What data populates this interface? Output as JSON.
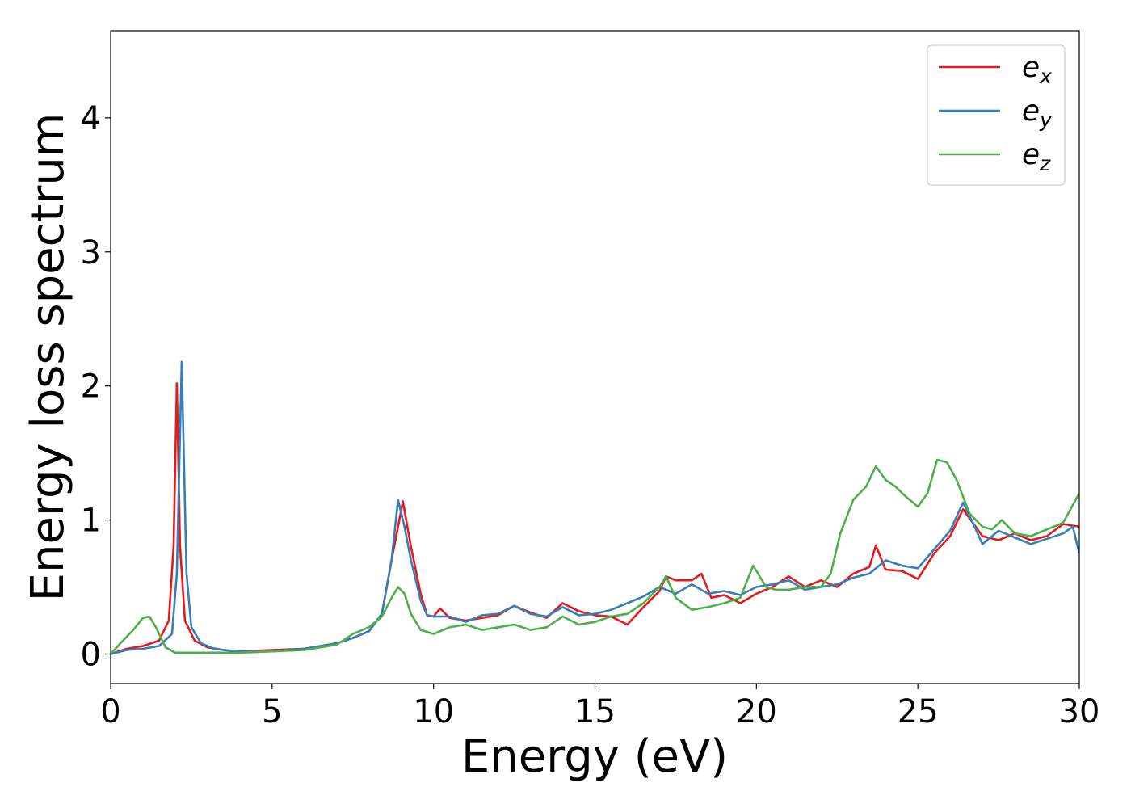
{
  "chart_data": {
    "type": "line",
    "xlabel": "Energy (eV)",
    "ylabel": "Energy loss spectrum",
    "xlim": [
      0,
      30
    ],
    "ylim": [
      -0.22,
      4.65
    ],
    "xticks": [
      "0",
      "5",
      "10",
      "15",
      "20",
      "25",
      "30"
    ],
    "yticks": [
      "0",
      "1",
      "2",
      "3",
      "4"
    ],
    "grid": false,
    "legend_position": "top-right",
    "series": [
      {
        "name": "e",
        "subscript": "x",
        "color": "#e41a1c",
        "x": [
          0,
          0.5,
          1.0,
          1.5,
          1.8,
          1.95,
          2.05,
          2.15,
          2.3,
          2.6,
          3.0,
          3.5,
          4,
          5,
          6,
          7,
          7.5,
          8,
          8.4,
          8.7,
          8.9,
          9.05,
          9.3,
          9.6,
          9.8,
          10,
          10.2,
          10.5,
          11,
          11.5,
          12,
          12.5,
          13,
          13.5,
          14,
          14.5,
          15,
          15.5,
          16,
          16.5,
          17,
          17.2,
          17.5,
          18,
          18.3,
          18.6,
          19,
          19.5,
          20,
          20.5,
          21,
          21.5,
          22,
          22.5,
          23,
          23.5,
          23.7,
          24,
          24.5,
          25,
          25.5,
          26,
          26.4,
          26.7,
          27,
          27.5,
          28,
          28.5,
          29,
          29.5,
          30
        ],
        "values": [
          0,
          0.04,
          0.06,
          0.1,
          0.25,
          0.8,
          2.02,
          0.8,
          0.25,
          0.1,
          0.05,
          0.03,
          0.02,
          0.03,
          0.04,
          0.08,
          0.12,
          0.17,
          0.3,
          0.7,
          0.95,
          1.14,
          0.8,
          0.45,
          0.29,
          0.28,
          0.34,
          0.27,
          0.25,
          0.27,
          0.29,
          0.36,
          0.31,
          0.27,
          0.38,
          0.32,
          0.29,
          0.28,
          0.22,
          0.35,
          0.47,
          0.58,
          0.55,
          0.55,
          0.6,
          0.42,
          0.44,
          0.38,
          0.45,
          0.5,
          0.58,
          0.5,
          0.55,
          0.5,
          0.6,
          0.65,
          0.81,
          0.63,
          0.62,
          0.56,
          0.75,
          0.88,
          1.08,
          0.98,
          0.88,
          0.85,
          0.9,
          0.85,
          0.88,
          0.97,
          0.95
        ]
      },
      {
        "name": "e",
        "subscript": "y",
        "color": "#377eb8",
        "x": [
          0,
          0.5,
          1.0,
          1.5,
          1.9,
          2.05,
          2.2,
          2.35,
          2.5,
          2.8,
          3.2,
          3.5,
          4,
          5,
          6,
          7,
          7.5,
          8,
          8.4,
          8.7,
          8.9,
          9.1,
          9.3,
          9.6,
          9.8,
          10,
          10.5,
          11,
          11.5,
          12,
          12.5,
          13,
          13.5,
          14,
          14.5,
          15,
          15.5,
          16,
          16.5,
          17,
          17.5,
          18,
          18.5,
          19,
          19.5,
          20,
          20.5,
          21,
          21.5,
          22,
          22.5,
          23,
          23.5,
          24,
          24.5,
          25,
          25.5,
          26,
          26.4,
          26.7,
          27,
          27.5,
          28,
          28.5,
          29,
          29.5,
          29.8,
          30
        ],
        "values": [
          0,
          0.03,
          0.04,
          0.06,
          0.15,
          0.6,
          2.18,
          0.6,
          0.2,
          0.08,
          0.04,
          0.03,
          0.02,
          0.02,
          0.04,
          0.08,
          0.12,
          0.17,
          0.3,
          0.7,
          1.15,
          0.95,
          0.7,
          0.4,
          0.29,
          0.28,
          0.28,
          0.24,
          0.29,
          0.3,
          0.36,
          0.3,
          0.28,
          0.35,
          0.29,
          0.3,
          0.33,
          0.38,
          0.43,
          0.5,
          0.45,
          0.52,
          0.45,
          0.47,
          0.44,
          0.5,
          0.52,
          0.55,
          0.48,
          0.5,
          0.52,
          0.57,
          0.6,
          0.7,
          0.66,
          0.64,
          0.78,
          0.92,
          1.13,
          0.98,
          0.82,
          0.92,
          0.87,
          0.82,
          0.86,
          0.9,
          0.95,
          0.75
        ]
      },
      {
        "name": "e",
        "subscript": "z",
        "color": "#4daf4a",
        "x": [
          0,
          0.3,
          0.7,
          1.0,
          1.2,
          1.4,
          1.7,
          2.0,
          2.5,
          3,
          4,
          5,
          6,
          7,
          7.5,
          8,
          8.4,
          8.7,
          8.9,
          9.1,
          9.3,
          9.6,
          10,
          10.5,
          11,
          11.5,
          12,
          12.5,
          13,
          13.5,
          14,
          14.5,
          15,
          15.5,
          16,
          16.5,
          17,
          17.2,
          17.5,
          18,
          18.5,
          19,
          19.5,
          19.9,
          20.3,
          20.6,
          21,
          21.5,
          22,
          22.3,
          22.6,
          23,
          23.4,
          23.7,
          24,
          24.3,
          24.6,
          25,
          25.3,
          25.6,
          25.9,
          26.2,
          26.6,
          27,
          27.3,
          27.6,
          28,
          28.5,
          29,
          29.5,
          30
        ],
        "values": [
          0,
          0.08,
          0.18,
          0.27,
          0.28,
          0.2,
          0.05,
          0.01,
          0.01,
          0.01,
          0.01,
          0.02,
          0.03,
          0.07,
          0.15,
          0.2,
          0.28,
          0.42,
          0.5,
          0.45,
          0.3,
          0.18,
          0.15,
          0.2,
          0.22,
          0.18,
          0.2,
          0.22,
          0.18,
          0.2,
          0.28,
          0.22,
          0.24,
          0.28,
          0.3,
          0.38,
          0.5,
          0.58,
          0.42,
          0.33,
          0.35,
          0.38,
          0.42,
          0.66,
          0.5,
          0.48,
          0.48,
          0.5,
          0.5,
          0.6,
          0.9,
          1.15,
          1.25,
          1.4,
          1.3,
          1.25,
          1.18,
          1.1,
          1.2,
          1.45,
          1.43,
          1.3,
          1.05,
          0.95,
          0.93,
          1.0,
          0.9,
          0.88,
          0.93,
          0.98,
          1.2
        ]
      }
    ]
  }
}
